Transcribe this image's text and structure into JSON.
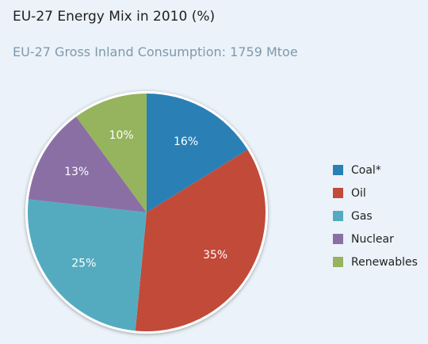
{
  "title": "EU-27 Energy Mix in 2010 (%)",
  "subtitle": "EU-27 Gross Inland Consumption: 1759 Mtoe",
  "chart_data": {
    "type": "pie",
    "title": "EU-27 Energy Mix in 2010 (%)",
    "subtitle": "EU-27 Gross Inland Consumption: 1759 Mtoe",
    "unit": "%",
    "start_angle_deg": 0,
    "direction": "clockwise",
    "legend_position": "right",
    "slices": [
      {
        "label": "Coal*",
        "value": 16,
        "value_label": "16%",
        "color": "#2a80b5"
      },
      {
        "label": "Oil",
        "value": 35,
        "value_label": "35%",
        "color": "#c24a39"
      },
      {
        "label": "Gas",
        "value": 25,
        "value_label": "25%",
        "color": "#54abbf"
      },
      {
        "label": "Nuclear",
        "value": 13,
        "value_label": "13%",
        "color": "#8a6fa5"
      },
      {
        "label": "Renewables",
        "value": 10,
        "value_label": "10%",
        "color": "#96b35e"
      }
    ]
  }
}
